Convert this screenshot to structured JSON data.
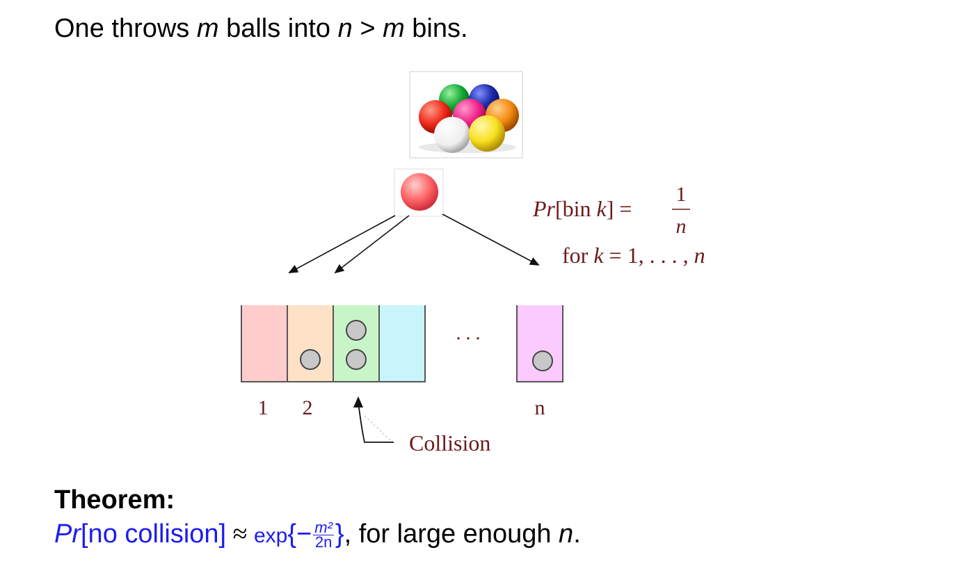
{
  "heading": {
    "prefix": "One throws ",
    "m": "m",
    "middle": " balls into ",
    "n": "n",
    "gt": " > ",
    "m2": "m",
    "suffix": " bins."
  },
  "diagram": {
    "prob_prefix": "Pr",
    "prob_bracket": "[bin ",
    "prob_k": "k",
    "prob_close": "] =",
    "prob_num": "1",
    "prob_den": "n",
    "for_text": "for ",
    "for_k": "k",
    "for_rest": " = 1, . . . , ",
    "for_n": "n",
    "ellipsis": ". . .",
    "bin_label_1": "1",
    "bin_label_2": "2",
    "bin_label_n": "n",
    "collision_label": "Collision",
    "bin_colors": [
      "#ffcccc",
      "#fde2c8",
      "#c8f5c8",
      "#c8f4fa",
      "#fbcaff"
    ],
    "ball_colors": [
      "#11aa33",
      "#1a2aa8",
      "#f02a1a",
      "#ee2288",
      "#f58a10",
      "#f4f4f4",
      "#f8e020"
    ]
  },
  "theorem": {
    "title": "Theorem:",
    "pr": "Pr",
    "bracket": "[no collision]",
    "approx": " ≈ ",
    "exp": "exp",
    "open": "{−",
    "frac_num": "m²",
    "frac_den": "2n",
    "close": "}",
    "tail": ", for large enough ",
    "n": "n",
    "end": "."
  }
}
